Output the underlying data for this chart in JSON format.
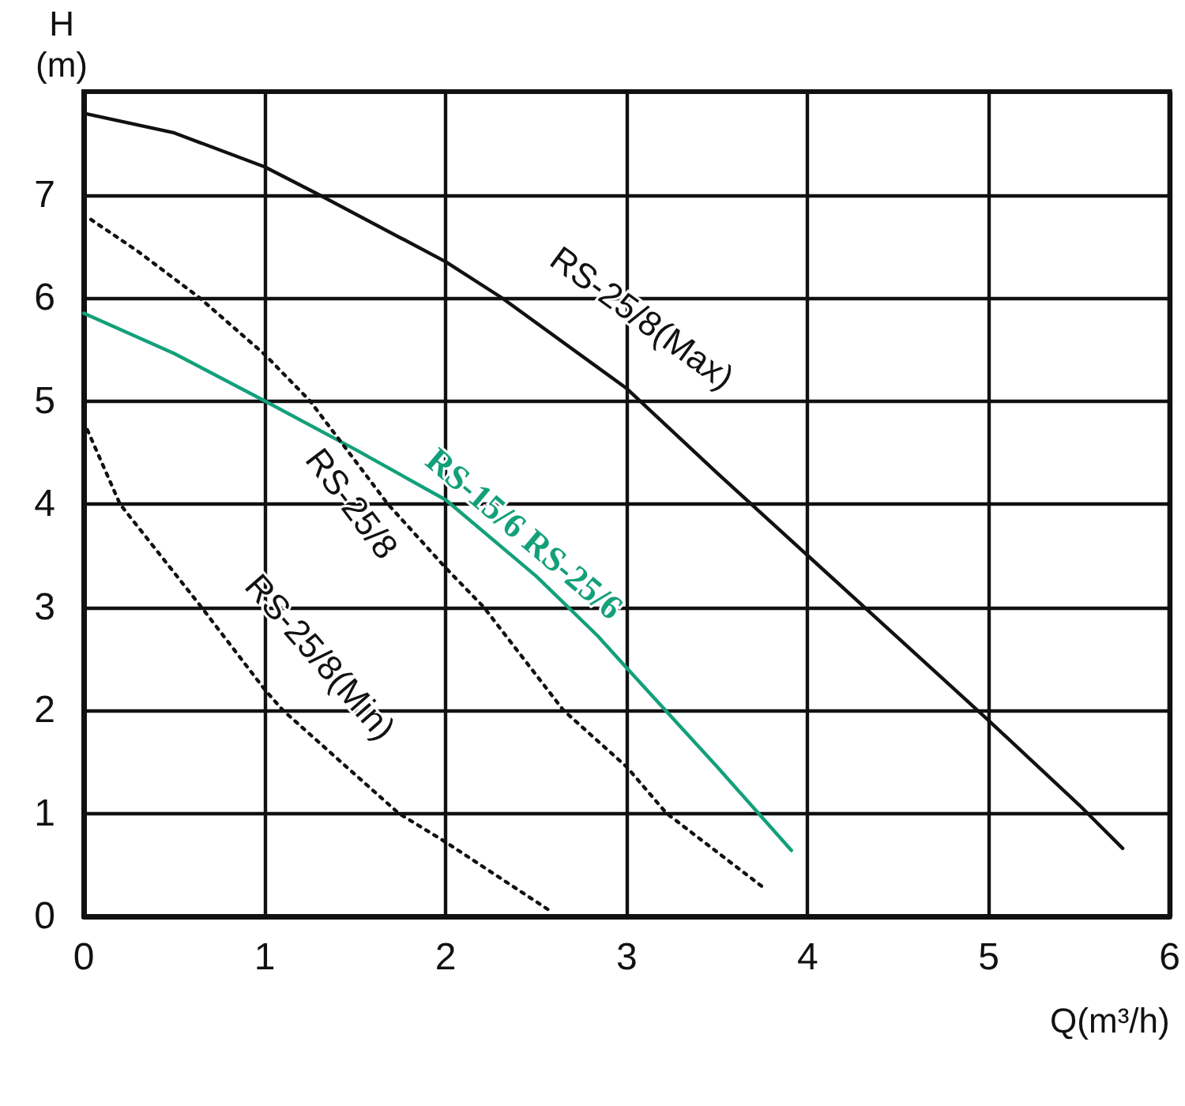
{
  "chart_data": {
    "type": "line",
    "xlabel": "Q(m³/h)",
    "ylabel": "H\n(m)",
    "xlim": [
      0,
      6
    ],
    "xticks": [
      0,
      1,
      2,
      3,
      4,
      5,
      6
    ],
    "ylim": [
      0,
      8
    ],
    "yticks": [
      0,
      1,
      2,
      3,
      4,
      5,
      6,
      7,
      {
        "value": 8,
        "label": null
      }
    ],
    "grid": true,
    "legend": false,
    "marker": "none",
    "series": [
      {
        "name": "RS-25/8(Max)",
        "color": "#111111",
        "line_style": "solid",
        "x": [
          0,
          0.5,
          1,
          1.3,
          2,
          2.31,
          3,
          3.5,
          4,
          4.5,
          5,
          5.5,
          5.74
        ],
        "values": [
          7.79,
          7.6,
          7.27,
          7.0,
          6.35,
          6.0,
          5.12,
          4.3,
          3.5,
          2.7,
          1.9,
          1.08,
          0.66
        ]
      },
      {
        "name": "RS-15/6 RS-25/6",
        "color": "#13a07a",
        "line_style": "solid",
        "x": [
          0,
          0.5,
          1,
          1.5,
          2,
          2.5,
          2.84,
          3,
          3.5,
          3.91
        ],
        "values": [
          5.85,
          5.46,
          5.0,
          4.53,
          4.04,
          3.3,
          2.72,
          2.41,
          1.45,
          0.64
        ]
      },
      {
        "name": "RS-25/8",
        "color": "#111111",
        "line_style": "dotted",
        "x": [
          0.04,
          0.3,
          0.64,
          1,
          1.25,
          1.68,
          2,
          2.21,
          2.65,
          3,
          3.22,
          3.77
        ],
        "values": [
          6.76,
          6.45,
          6.0,
          5.45,
          5.0,
          4.0,
          3.38,
          3.0,
          2.0,
          1.45,
          1.0,
          0.26
        ]
      },
      {
        "name": "RS-25/8(Min)",
        "color": "#111111",
        "line_style": "dotted",
        "x": [
          0.02,
          0.2,
          0.65,
          1,
          1.1,
          1.74,
          2,
          2.58
        ],
        "values": [
          4.72,
          4.0,
          3.0,
          2.2,
          2.0,
          1.0,
          0.72,
          0.05
        ]
      }
    ]
  }
}
